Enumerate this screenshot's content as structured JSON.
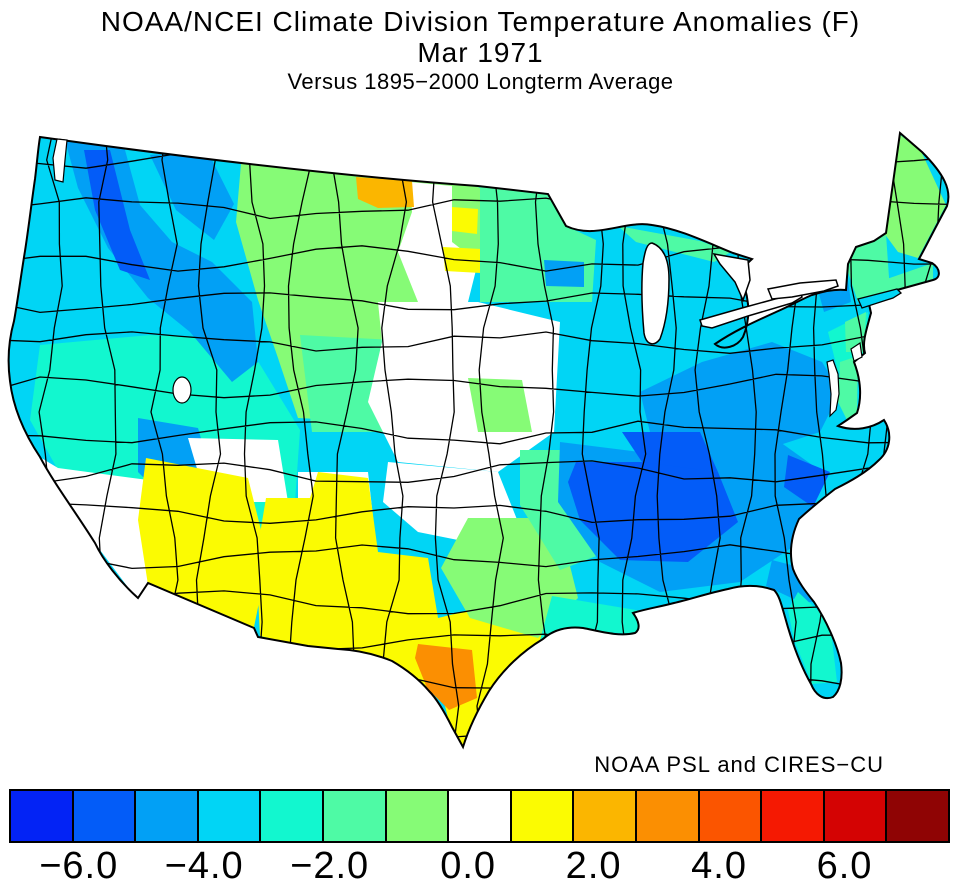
{
  "header": {
    "title_line1": "NOAA/NCEI Climate Division Temperature Anomalies (F)",
    "title_line2": "Mar 1971",
    "subtitle": "Versus 1895−2000 Longterm Average"
  },
  "credit": "NOAA PSL and CIRES−CU",
  "colorbar": {
    "tick_labels": [
      "−6.0",
      "−4.0",
      "−2.0",
      "0.0",
      "2.0",
      "4.0",
      "6.0"
    ],
    "segment_colors": [
      "#0323f5",
      "#035cf8",
      "#02a0f5",
      "#01d5f5",
      "#12f7cf",
      "#4efaa5",
      "#86fb76",
      "#ffffff",
      "#fbfb02",
      "#fbb600",
      "#fb8f02",
      "#fb5500",
      "#f51902",
      "#d40303",
      "#8f0404"
    ],
    "units": "degrees F"
  },
  "palette": {
    "blue1": "#0323f5",
    "blue2": "#035cf8",
    "blue3": "#02a0f5",
    "cyan": "#01d5f5",
    "turquoise": "#12f7cf",
    "mint": "#4efaa5",
    "green": "#86fb76",
    "white": "#ffffff",
    "yellow": "#fbfb02",
    "amber": "#fbb600",
    "orange": "#fb8f02"
  },
  "chart_data": {
    "type": "choropleth-map",
    "title": "NOAA/NCEI Climate Division Temperature Anomalies (F)",
    "period": "Mar 1971",
    "baseline": "Versus 1895−2000 Longterm Average",
    "units": "F anomaly",
    "legend_position": "bottom",
    "scale": {
      "tick_values": [
        -6.0,
        -4.0,
        -2.0,
        0.0,
        2.0,
        4.0,
        6.0
      ],
      "segment_colors": [
        "#0323f5",
        "#035cf8",
        "#02a0f5",
        "#01d5f5",
        "#12f7cf",
        "#4efaa5",
        "#86fb76",
        "#ffffff",
        "#fbfb02",
        "#fbb600",
        "#fb8f02",
        "#fb5500",
        "#f51902",
        "#d40303",
        "#8f0404"
      ],
      "white_means": "near normal"
    },
    "regions": [
      {
        "region": "Washington Cascades / N Idaho",
        "anomaly_f": "-5 to -3"
      },
      {
        "region": "Washington-Oregon coast",
        "anomaly_f": "-3 to -2"
      },
      {
        "region": "Eastern Oregon spot",
        "anomaly_f": "-4 to -3"
      },
      {
        "region": "Nevada / Utah / interior California",
        "anomaly_f": "-3 to -2"
      },
      {
        "region": "Southern California",
        "anomaly_f": "0 to +1"
      },
      {
        "region": "Montana / Wyoming / Colorado Rockies",
        "anomaly_f": "-2 to -1"
      },
      {
        "region": "NW North Dakota spot",
        "anomaly_f": "+2 to +3"
      },
      {
        "region": "E North Dakota and C South Dakota spots",
        "anomaly_f": "+1 to +2"
      },
      {
        "region": "Central plains (NE/KS/E CO/W OK)",
        "anomaly_f": "0 to +1"
      },
      {
        "region": "Arizona / S New Mexico / far W Texas",
        "anomaly_f": "+1 to +2"
      },
      {
        "region": "Big Bend Texas spot",
        "anomaly_f": "+2 to +3"
      },
      {
        "region": "South Texas",
        "anomaly_f": "+1 to +2"
      },
      {
        "region": "Central Texas",
        "anomaly_f": "-1 to 0"
      },
      {
        "region": "Minnesota / Upper Midwest",
        "anomaly_f": "-2 to -1"
      },
      {
        "region": "Great Lakes / Corn Belt",
        "anomaly_f": "-3 to -2"
      },
      {
        "region": "Ohio Valley / Appalachians",
        "anomaly_f": "-4 to -3"
      },
      {
        "region": "Deep South core (MS/AL/GA/TN)",
        "anomaly_f": "-6 to -4"
      },
      {
        "region": "Coastal South Carolina",
        "anomaly_f": "-5 to -4"
      },
      {
        "region": "Florida peninsula",
        "anomaly_f": "-3 to -2"
      },
      {
        "region": "Mid-Atlantic coast (NJ/Delmarva)",
        "anomaly_f": "-2 to -1"
      },
      {
        "region": "New England / Maine",
        "anomaly_f": "-2 to -1"
      }
    ]
  }
}
